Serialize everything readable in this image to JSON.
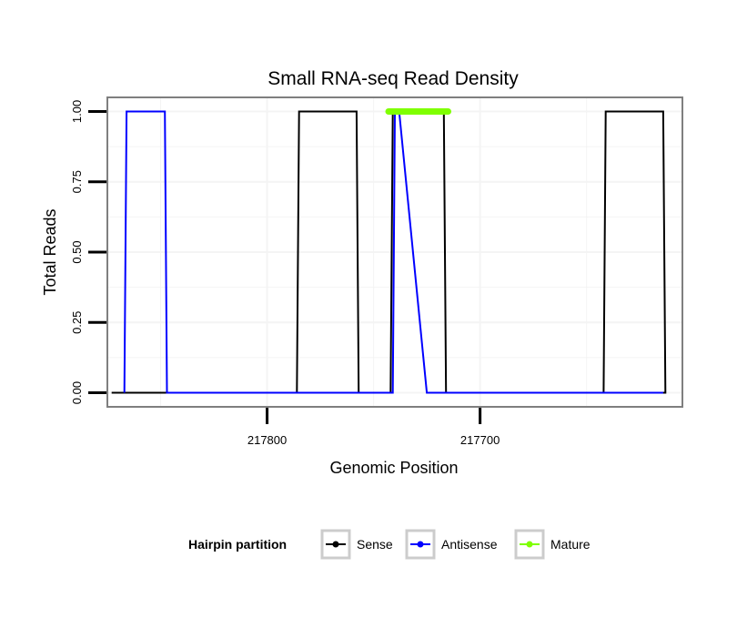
{
  "chart_data": {
    "type": "line",
    "title": "Small RNA-seq Read Density",
    "xlabel": "Genomic Position",
    "ylabel": "Total Reads",
    "x_reversed": true,
    "xlim": [
      217875,
      217605
    ],
    "ylim": [
      -0.05,
      1.05
    ],
    "x_ticks": [
      217800,
      217700
    ],
    "x_tick_labels": [
      "217800",
      "217700"
    ],
    "y_ticks": [
      0,
      0.25,
      0.5,
      0.75,
      1
    ],
    "y_tick_labels": [
      "0.00",
      "0.25",
      "0.50",
      "0.75",
      "1.00"
    ],
    "grid": true,
    "legend": {
      "title": "Hairpin partition",
      "position": "bottom",
      "entries": [
        "Sense",
        "Antisense",
        "Mature"
      ]
    },
    "series": [
      {
        "name": "Sense",
        "color": "#000000",
        "x": [
          217873,
          217786,
          217785,
          217758,
          217757,
          217742,
          217741,
          217717,
          217716,
          217642,
          217641,
          217614,
          217613,
          217625
        ],
        "y": [
          0,
          0,
          1,
          1,
          0,
          0,
          1,
          1,
          0,
          0,
          1,
          1,
          0,
          0
        ]
      },
      {
        "name": "Antisense",
        "color": "#0000ff",
        "x": [
          217867,
          217866,
          217848,
          217847,
          217787,
          217786,
          217741,
          217740,
          217738,
          217725,
          217716,
          217642,
          217614
        ],
        "y": [
          0,
          1,
          1,
          0,
          0,
          0,
          0,
          1,
          1,
          0,
          0,
          0,
          0
        ]
      },
      {
        "name": "Mature",
        "color": "#7fff00",
        "x": [
          217743,
          217715
        ],
        "y": [
          1,
          1
        ]
      }
    ]
  }
}
